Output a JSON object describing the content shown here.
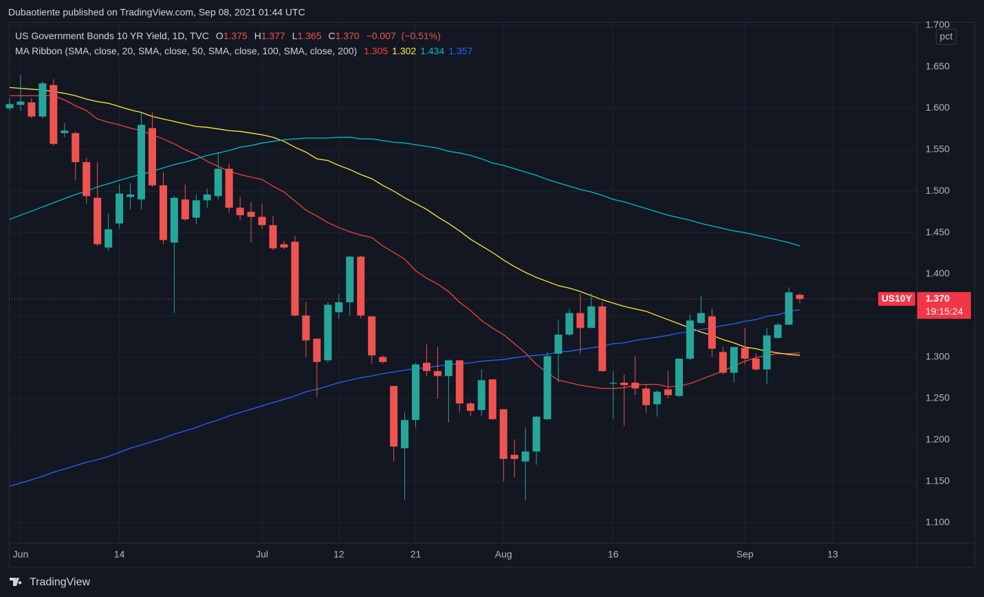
{
  "header": "Dubaotiente published on TradingView.com, Sep 08, 2021 01:44 UTC",
  "footer": {
    "brand": "TradingView"
  },
  "chart_data": {
    "type": "candlestick",
    "title": "US Government Bonds 10 YR Yield, 1D, TVC",
    "ohlc_legend": [
      {
        "label": "O",
        "value": 1.375
      },
      {
        "label": "H",
        "value": 1.377
      },
      {
        "label": "L",
        "value": 1.365
      },
      {
        "label": "C",
        "value": 1.37,
        "value_label": "1.370"
      }
    ],
    "change": {
      "value": -0.007,
      "label": "−0.007"
    },
    "change_pct": {
      "value": -0.51,
      "label": "(−0.51%)"
    },
    "indicator": {
      "label": "MA Ribbon (SMA, close, 20, SMA, close, 50, SMA, close, 100, SMA, close, 200)",
      "values": [
        1.305,
        1.302,
        1.434,
        1.357
      ],
      "colors": [
        "#f44336",
        "#ffeb3b",
        "#00bcd4",
        "#2962ff"
      ]
    },
    "y_unit": "pct",
    "last_price": {
      "symbol": "US10Y",
      "value": 1.37,
      "label": "1.370",
      "countdown": "19:15:24",
      "color": "#f23645"
    },
    "up_color": "#26a69a",
    "down_color": "#ef5350",
    "categories": [
      null,
      "Jun",
      null,
      null,
      null,
      null,
      null,
      null,
      null,
      null,
      "14",
      null,
      null,
      null,
      null,
      null,
      null,
      null,
      null,
      null,
      null,
      null,
      null,
      "Jul",
      null,
      null,
      null,
      null,
      null,
      null,
      "12",
      null,
      null,
      null,
      null,
      null,
      null,
      "21",
      null,
      null,
      null,
      null,
      null,
      null,
      null,
      "Aug",
      null,
      null,
      null,
      null,
      null,
      null,
      null,
      null,
      null,
      "16",
      null,
      null,
      null,
      null,
      null,
      null,
      null,
      null,
      null,
      null,
      null,
      "Sep",
      null,
      null,
      null,
      null,
      null,
      null,
      null,
      "13"
    ],
    "open": [
      1.6,
      1.604,
      1.607,
      1.59,
      1.628,
      1.57,
      1.57,
      1.535,
      1.492,
      1.432,
      1.461,
      1.493,
      1.49,
      1.576,
      1.507,
      1.438,
      1.49,
      1.468,
      1.489,
      1.494,
      1.527,
      1.48,
      1.475,
      1.469,
      1.459,
      1.436,
      1.439,
      1.35,
      1.322,
      1.296,
      1.354,
      1.366,
      1.421,
      1.349,
      1.3,
      1.265,
      1.19,
      1.224,
      1.293,
      1.283,
      1.277,
      1.296,
      1.244,
      1.236,
      1.273,
      1.237,
      1.182,
      1.174,
      1.186,
      1.225,
      1.304,
      1.327,
      1.353,
      1.335,
      1.361,
      1.268,
      1.269,
      1.269,
      1.262,
      1.243,
      1.261,
      1.253,
      1.298,
      1.341,
      1.349,
      1.306,
      1.281,
      1.311,
      1.298,
      1.285,
      1.323,
      1.339,
      1.375,
      null,
      null,
      null
    ],
    "high": [
      1.612,
      1.64,
      1.612,
      1.632,
      1.635,
      1.582,
      1.572,
      1.54,
      1.535,
      1.473,
      1.508,
      1.51,
      1.594,
      1.595,
      1.523,
      1.494,
      1.508,
      1.496,
      1.503,
      1.547,
      1.533,
      1.493,
      1.487,
      1.485,
      1.47,
      1.44,
      1.446,
      1.366,
      1.323,
      1.366,
      1.376,
      1.422,
      1.422,
      1.349,
      1.302,
      1.265,
      1.233,
      1.293,
      1.315,
      1.312,
      1.297,
      1.296,
      1.246,
      1.285,
      1.273,
      1.237,
      1.2,
      1.215,
      1.229,
      1.306,
      1.345,
      1.358,
      1.376,
      1.377,
      1.366,
      1.283,
      1.279,
      1.301,
      1.267,
      1.26,
      1.283,
      1.298,
      1.351,
      1.374,
      1.358,
      1.312,
      1.312,
      1.335,
      1.304,
      1.335,
      1.341,
      1.384,
      1.377,
      null,
      null,
      null
    ],
    "low": [
      1.597,
      1.597,
      1.588,
      1.588,
      1.555,
      1.565,
      1.513,
      1.485,
      1.434,
      1.428,
      1.455,
      1.478,
      1.478,
      1.505,
      1.436,
      1.353,
      1.464,
      1.46,
      1.48,
      1.49,
      1.474,
      1.465,
      1.438,
      1.455,
      1.429,
      1.43,
      1.349,
      1.3,
      1.252,
      1.293,
      1.346,
      1.35,
      1.347,
      1.292,
      1.292,
      1.174,
      1.128,
      1.215,
      1.277,
      1.25,
      1.221,
      1.233,
      1.229,
      1.229,
      1.224,
      1.15,
      1.155,
      1.127,
      1.17,
      1.224,
      1.269,
      1.325,
      1.304,
      1.335,
      1.282,
      1.225,
      1.217,
      1.254,
      1.233,
      1.228,
      1.25,
      1.252,
      1.296,
      1.34,
      1.3,
      1.279,
      1.269,
      1.291,
      1.283,
      1.267,
      1.322,
      1.339,
      1.365,
      null,
      null,
      null
    ],
    "close": [
      1.605,
      1.608,
      1.59,
      1.63,
      1.557,
      1.573,
      1.535,
      1.494,
      1.436,
      1.454,
      1.497,
      1.496,
      1.58,
      1.507,
      1.441,
      1.492,
      1.466,
      1.489,
      1.496,
      1.527,
      1.48,
      1.471,
      1.469,
      1.459,
      1.431,
      1.432,
      1.35,
      1.32,
      1.294,
      1.363,
      1.366,
      1.421,
      1.35,
      1.302,
      1.294,
      1.192,
      1.224,
      1.291,
      1.283,
      1.277,
      1.296,
      1.244,
      1.235,
      1.272,
      1.225,
      1.177,
      1.177,
      1.186,
      1.228,
      1.301,
      1.327,
      1.353,
      1.335,
      1.361,
      1.283,
      1.269,
      1.266,
      1.262,
      1.242,
      1.258,
      1.254,
      1.298,
      1.344,
      1.353,
      1.31,
      1.281,
      1.312,
      1.298,
      1.285,
      1.326,
      1.339,
      1.378,
      1.37,
      null,
      null,
      null
    ],
    "series": [
      {
        "color": "#f44336",
        "values": [
          1.615,
          1.615,
          1.615,
          1.615,
          1.615,
          1.61,
          1.603,
          1.597,
          1.587,
          1.583,
          1.58,
          1.576,
          1.573,
          1.568,
          1.563,
          1.557,
          1.55,
          1.544,
          1.536,
          1.53,
          1.524,
          1.52,
          1.517,
          1.514,
          1.506,
          1.499,
          1.488,
          1.477,
          1.47,
          1.462,
          1.456,
          1.451,
          1.447,
          1.444,
          1.434,
          1.426,
          1.418,
          1.404,
          1.395,
          1.388,
          1.379,
          1.366,
          1.356,
          1.344,
          1.335,
          1.327,
          1.316,
          1.305,
          1.291,
          1.281,
          1.272,
          1.269,
          1.266,
          1.264,
          1.262,
          1.262,
          1.263,
          1.266,
          1.267,
          1.267,
          1.264,
          1.265,
          1.268,
          1.273,
          1.278,
          1.283,
          1.289,
          1.295,
          1.299,
          1.302,
          1.304,
          1.304,
          1.305,
          null,
          null,
          null
        ]
      },
      {
        "color": "#ffeb3b",
        "values": [
          1.625,
          1.624,
          1.623,
          1.622,
          1.62,
          1.618,
          1.615,
          1.611,
          1.608,
          1.606,
          1.602,
          1.598,
          1.595,
          1.59,
          1.587,
          1.584,
          1.581,
          1.578,
          1.577,
          1.575,
          1.573,
          1.572,
          1.57,
          1.568,
          1.565,
          1.56,
          1.553,
          1.547,
          1.539,
          1.537,
          1.531,
          1.526,
          1.52,
          1.515,
          1.507,
          1.5,
          1.492,
          1.485,
          1.478,
          1.469,
          1.461,
          1.452,
          1.442,
          1.434,
          1.426,
          1.417,
          1.409,
          1.402,
          1.396,
          1.391,
          1.386,
          1.383,
          1.379,
          1.374,
          1.369,
          1.365,
          1.361,
          1.358,
          1.355,
          1.35,
          1.345,
          1.34,
          1.335,
          1.33,
          1.326,
          1.321,
          1.317,
          1.312,
          1.31,
          1.307,
          1.305,
          1.303,
          1.302,
          null,
          null,
          null
        ]
      },
      {
        "color": "#00bcd4",
        "values": [
          1.466,
          1.471,
          1.476,
          1.481,
          1.486,
          1.491,
          1.496,
          1.5,
          1.505,
          1.509,
          1.513,
          1.517,
          1.52,
          1.524,
          1.528,
          1.532,
          1.535,
          1.539,
          1.543,
          1.546,
          1.549,
          1.553,
          1.555,
          1.558,
          1.56,
          1.562,
          1.563,
          1.564,
          1.564,
          1.564,
          1.565,
          1.565,
          1.563,
          1.563,
          1.561,
          1.559,
          1.558,
          1.556,
          1.554,
          1.552,
          1.548,
          1.546,
          1.543,
          1.539,
          1.534,
          1.531,
          1.527,
          1.523,
          1.519,
          1.514,
          1.51,
          1.506,
          1.502,
          1.499,
          1.495,
          1.49,
          1.487,
          1.483,
          1.479,
          1.475,
          1.471,
          1.468,
          1.465,
          1.461,
          1.458,
          1.455,
          1.452,
          1.45,
          1.447,
          1.444,
          1.441,
          1.438,
          1.434,
          null,
          null,
          null
        ]
      },
      {
        "color": "#2962ff",
        "values": [
          1.144,
          1.148,
          1.152,
          1.156,
          1.161,
          1.165,
          1.169,
          1.173,
          1.176,
          1.18,
          1.185,
          1.19,
          1.194,
          1.198,
          1.202,
          1.207,
          1.211,
          1.215,
          1.22,
          1.224,
          1.229,
          1.233,
          1.237,
          1.241,
          1.245,
          1.249,
          1.253,
          1.258,
          1.261,
          1.265,
          1.269,
          1.272,
          1.275,
          1.277,
          1.28,
          1.282,
          1.284,
          1.286,
          1.287,
          1.289,
          1.291,
          1.292,
          1.293,
          1.295,
          1.296,
          1.297,
          1.299,
          1.301,
          1.302,
          1.303,
          1.306,
          1.307,
          1.309,
          1.311,
          1.313,
          1.316,
          1.317,
          1.32,
          1.322,
          1.324,
          1.326,
          1.329,
          1.33,
          1.333,
          1.335,
          1.338,
          1.34,
          1.343,
          1.345,
          1.349,
          1.351,
          1.355,
          1.357,
          null,
          null,
          null
        ]
      }
    ],
    "ylim": [
      1.076,
      1.704
    ],
    "yticks": [
      {
        "value": 1.1,
        "label": "1.100"
      },
      {
        "value": 1.15,
        "label": "1.150"
      },
      {
        "value": 1.2,
        "label": "1.200"
      },
      {
        "value": 1.25,
        "label": "1.250"
      },
      {
        "value": 1.3,
        "label": "1.300"
      },
      {
        "value": 1.35,
        "label": "1.350"
      },
      {
        "value": 1.4,
        "label": "1.400"
      },
      {
        "value": 1.45,
        "label": "1.450"
      },
      {
        "value": 1.5,
        "label": "1.500"
      },
      {
        "value": 1.55,
        "label": "1.550"
      },
      {
        "value": 1.6,
        "label": "1.600"
      },
      {
        "value": 1.65,
        "label": "1.650"
      },
      {
        "value": 1.7,
        "label": "1.700"
      }
    ],
    "grid": true
  }
}
